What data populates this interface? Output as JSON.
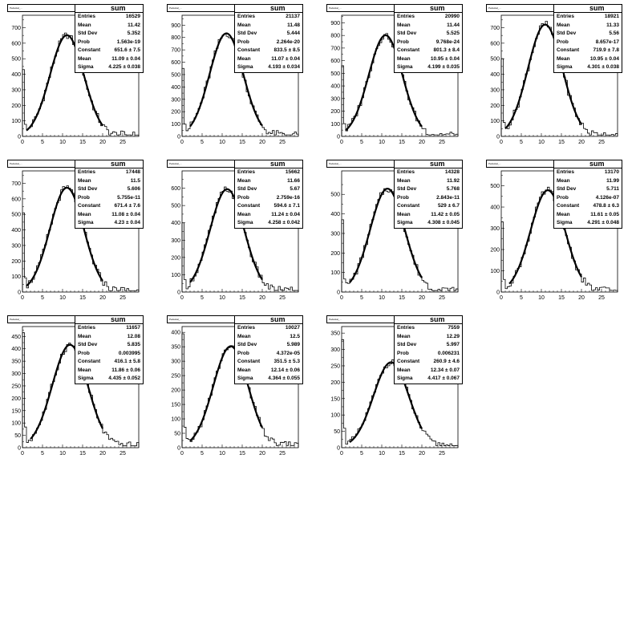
{
  "plots": [
    {
      "title": "Pedestal_...",
      "stats_name": "sum",
      "stats": [
        {
          "label": "Entries",
          "value": "16529"
        },
        {
          "label": "Mean",
          "value": "11.42"
        },
        {
          "label": "Std Dev",
          "value": "5.352"
        },
        {
          "label": "Prob",
          "value": "1.563e-19"
        },
        {
          "label": "Constant",
          "value": "651.6 ± 7.5"
        },
        {
          "label": "Mean",
          "value": "11.09 ± 0.04"
        },
        {
          "label": "Sigma",
          "value": "4.225 ± 0.038"
        }
      ],
      "chart_data": {
        "type": "histogram",
        "xlim": [
          0,
          29
        ],
        "ylim": [
          0,
          780
        ],
        "xticks": [
          0,
          5,
          10,
          15,
          20,
          25
        ],
        "yticks": [
          0,
          100,
          200,
          300,
          400,
          500,
          600,
          700
        ],
        "fit": {
          "constant": 651.6,
          "mean": 11.09,
          "sigma": 4.225,
          "range": [
            1,
            20
          ]
        },
        "spike_height": 430,
        "tail_level": 30
      }
    },
    {
      "title": "Pedestal_...",
      "stats_name": "sum",
      "stats": [
        {
          "label": "Entries",
          "value": "21137"
        },
        {
          "label": "Mean",
          "value": "11.48"
        },
        {
          "label": "Std Dev",
          "value": "5.444"
        },
        {
          "label": "Prob",
          "value": "2.264e-20"
        },
        {
          "label": "Constant",
          "value": "833.5 ± 8.5"
        },
        {
          "label": "Mean",
          "value": "11.07 ± 0.04"
        },
        {
          "label": "Sigma",
          "value": "4.193 ± 0.034"
        }
      ],
      "chart_data": {
        "type": "histogram",
        "xlim": [
          0,
          29
        ],
        "ylim": [
          0,
          980
        ],
        "xticks": [
          0,
          5,
          10,
          15,
          20,
          25
        ],
        "yticks": [
          0,
          100,
          200,
          300,
          400,
          500,
          600,
          700,
          800,
          900
        ],
        "fit": {
          "constant": 833.5,
          "mean": 11.07,
          "sigma": 4.193,
          "range": [
            2,
            20
          ]
        },
        "spike_height": 550,
        "tail_level": 40
      }
    },
    {
      "title": "Pedestal_...",
      "stats_name": "sum",
      "stats": [
        {
          "label": "Entries",
          "value": "20990"
        },
        {
          "label": "Mean",
          "value": "11.44"
        },
        {
          "label": "Std Dev",
          "value": "5.525"
        },
        {
          "label": "Prob",
          "value": "9.768e-24"
        },
        {
          "label": "Constant",
          "value": "801.3 ± 8.4"
        },
        {
          "label": "Mean",
          "value": "10.95 ± 0.04"
        },
        {
          "label": "Sigma",
          "value": "4.199 ± 0.035"
        }
      ],
      "chart_data": {
        "type": "histogram",
        "xlim": [
          0,
          29
        ],
        "ylim": [
          0,
          960
        ],
        "xticks": [
          0,
          5,
          10,
          15,
          20,
          25
        ],
        "yticks": [
          0,
          100,
          200,
          300,
          400,
          500,
          600,
          700,
          800,
          900
        ],
        "fit": {
          "constant": 801.3,
          "mean": 10.95,
          "sigma": 4.199,
          "range": [
            1,
            20
          ]
        },
        "spike_height": 560,
        "tail_level": 40
      }
    },
    {
      "title": "Pedestal_...",
      "stats_name": "sum",
      "stats": [
        {
          "label": "Entries",
          "value": "18921"
        },
        {
          "label": "Mean",
          "value": "11.33"
        },
        {
          "label": "Std Dev",
          "value": "5.56"
        },
        {
          "label": "Prob",
          "value": "8.657e-17"
        },
        {
          "label": "Constant",
          "value": "719.9 ± 7.8"
        },
        {
          "label": "Mean",
          "value": "10.95 ± 0.04"
        },
        {
          "label": "Sigma",
          "value": "4.301 ± 0.038"
        }
      ],
      "chart_data": {
        "type": "histogram",
        "xlim": [
          0,
          29
        ],
        "ylim": [
          0,
          780
        ],
        "xticks": [
          0,
          5,
          10,
          15,
          20,
          25
        ],
        "yticks": [
          0,
          100,
          200,
          300,
          400,
          500,
          600,
          700
        ],
        "fit": {
          "constant": 719.9,
          "mean": 10.95,
          "sigma": 4.301,
          "range": [
            1,
            20
          ]
        },
        "spike_height": 500,
        "tail_level": 30
      }
    },
    {
      "title": "Pedestal_...",
      "stats_name": "sum",
      "stats": [
        {
          "label": "Entries",
          "value": "17448"
        },
        {
          "label": "Mean",
          "value": "11.5"
        },
        {
          "label": "Std Dev",
          "value": "5.606"
        },
        {
          "label": "Prob",
          "value": "5.755e-11"
        },
        {
          "label": "Constant",
          "value": "671.4 ± 7.6"
        },
        {
          "label": "Mean",
          "value": "11.08 ± 0.04"
        },
        {
          "label": "Sigma",
          "value": "4.23 ± 0.04"
        }
      ],
      "chart_data": {
        "type": "histogram",
        "xlim": [
          0,
          29
        ],
        "ylim": [
          0,
          780
        ],
        "xticks": [
          0,
          5,
          10,
          15,
          20,
          25
        ],
        "yticks": [
          0,
          100,
          200,
          300,
          400,
          500,
          600,
          700
        ],
        "fit": {
          "constant": 671.4,
          "mean": 11.08,
          "sigma": 4.23,
          "range": [
            1,
            20
          ]
        },
        "spike_height": 510,
        "tail_level": 30
      }
    },
    {
      "title": "Pedestal_...",
      "stats_name": "sum",
      "stats": [
        {
          "label": "Entries",
          "value": "15662"
        },
        {
          "label": "Mean",
          "value": "11.66"
        },
        {
          "label": "Std Dev",
          "value": "5.67"
        },
        {
          "label": "Prob",
          "value": "2.759e-16"
        },
        {
          "label": "Constant",
          "value": "594.6 ± 7.1"
        },
        {
          "label": "Mean",
          "value": "11.24 ± 0.04"
        },
        {
          "label": "Sigma",
          "value": "4.258 ± 0.042"
        }
      ],
      "chart_data": {
        "type": "histogram",
        "xlim": [
          0,
          29
        ],
        "ylim": [
          0,
          700
        ],
        "xticks": [
          0,
          5,
          10,
          15,
          20,
          25
        ],
        "yticks": [
          0,
          100,
          200,
          300,
          400,
          500,
          600
        ],
        "fit": {
          "constant": 594.6,
          "mean": 11.24,
          "sigma": 4.258,
          "range": [
            2,
            20
          ]
        },
        "spike_height": 400,
        "tail_level": 30
      }
    },
    {
      "title": "Pedestal_...",
      "stats_name": "sum",
      "stats": [
        {
          "label": "Entries",
          "value": "14328"
        },
        {
          "label": "Mean",
          "value": "11.92"
        },
        {
          "label": "Std Dev",
          "value": "5.768"
        },
        {
          "label": "Prob",
          "value": "2.843e-11"
        },
        {
          "label": "Constant",
          "value": "529 ± 6.7"
        },
        {
          "label": "Mean",
          "value": "11.42 ± 0.05"
        },
        {
          "label": "Sigma",
          "value": "4.308 ± 0.045"
        }
      ],
      "chart_data": {
        "type": "histogram",
        "xlim": [
          0,
          29
        ],
        "ylim": [
          0,
          620
        ],
        "xticks": [
          0,
          5,
          10,
          15,
          20,
          25
        ],
        "yticks": [
          0,
          100,
          200,
          300,
          400,
          500
        ],
        "fit": {
          "constant": 529,
          "mean": 11.42,
          "sigma": 4.308,
          "range": [
            2,
            20
          ]
        },
        "spike_height": 370,
        "tail_level": 25
      }
    },
    {
      "title": "Pedestal_...",
      "stats_name": "sum",
      "stats": [
        {
          "label": "Entries",
          "value": "13170"
        },
        {
          "label": "Mean",
          "value": "11.99"
        },
        {
          "label": "Std Dev",
          "value": "5.711"
        },
        {
          "label": "Prob",
          "value": "4.126e-07"
        },
        {
          "label": "Constant",
          "value": "478.8 ± 6.3"
        },
        {
          "label": "Mean",
          "value": "11.61 ± 0.05"
        },
        {
          "label": "Sigma",
          "value": "4.291 ± 0.048"
        }
      ],
      "chart_data": {
        "type": "histogram",
        "xlim": [
          0,
          29
        ],
        "ylim": [
          0,
          570
        ],
        "xticks": [
          0,
          5,
          10,
          15,
          20,
          25
        ],
        "yticks": [
          0,
          100,
          200,
          300,
          400,
          500
        ],
        "fit": {
          "constant": 478.8,
          "mean": 11.61,
          "sigma": 4.291,
          "range": [
            2,
            20
          ]
        },
        "spike_height": 330,
        "tail_level": 25
      }
    },
    {
      "title": "Pedestal_...",
      "stats_name": "sum",
      "stats": [
        {
          "label": "Entries",
          "value": "11657"
        },
        {
          "label": "Mean",
          "value": "12.08"
        },
        {
          "label": "Std Dev",
          "value": "5.835"
        },
        {
          "label": "Prob",
          "value": "0.003995"
        },
        {
          "label": "Constant",
          "value": "416.1 ± 5.8"
        },
        {
          "label": "Mean",
          "value": "11.86 ± 0.06"
        },
        {
          "label": "Sigma",
          "value": "4.435 ± 0.052"
        }
      ],
      "chart_data": {
        "type": "histogram",
        "xlim": [
          0,
          29
        ],
        "ylim": [
          0,
          490
        ],
        "xticks": [
          0,
          5,
          10,
          15,
          20,
          25
        ],
        "yticks": [
          0,
          50,
          100,
          150,
          200,
          250,
          300,
          350,
          400,
          450
        ],
        "fit": {
          "constant": 416.1,
          "mean": 11.86,
          "sigma": 4.435,
          "range": [
            2,
            20
          ]
        },
        "spike_height": 465,
        "tail_level": 25
      }
    },
    {
      "title": "Pedestal_...",
      "stats_name": "sum",
      "stats": [
        {
          "label": "Entries",
          "value": "10027"
        },
        {
          "label": "Mean",
          "value": "12.5"
        },
        {
          "label": "Std Dev",
          "value": "5.989"
        },
        {
          "label": "Prob",
          "value": "4.372e-05"
        },
        {
          "label": "Constant",
          "value": "351.5 ± 5.3"
        },
        {
          "label": "Mean",
          "value": "12.14 ± 0.06"
        },
        {
          "label": "Sigma",
          "value": "4.364 ± 0.055"
        }
      ],
      "chart_data": {
        "type": "histogram",
        "xlim": [
          0,
          29
        ],
        "ylim": [
          0,
          420
        ],
        "xticks": [
          0,
          5,
          10,
          15,
          20,
          25
        ],
        "yticks": [
          0,
          50,
          100,
          150,
          200,
          250,
          300,
          350,
          400
        ],
        "fit": {
          "constant": 351.5,
          "mean": 12.14,
          "sigma": 4.364,
          "range": [
            2,
            20
          ]
        },
        "spike_height": 395,
        "tail_level": 25
      }
    },
    {
      "title": "Pedestal_...",
      "stats_name": "sum",
      "stats": [
        {
          "label": "Entries",
          "value": "7559"
        },
        {
          "label": "Mean",
          "value": "12.29"
        },
        {
          "label": "Std Dev",
          "value": "5.997"
        },
        {
          "label": "Prob",
          "value": "0.006231"
        },
        {
          "label": "Constant",
          "value": "260.9 ± 4.6"
        },
        {
          "label": "Mean",
          "value": "12.34 ± 0.07"
        },
        {
          "label": "Sigma",
          "value": "4.417 ± 0.067"
        }
      ],
      "chart_data": {
        "type": "histogram",
        "xlim": [
          0,
          29
        ],
        "ylim": [
          0,
          370
        ],
        "xticks": [
          0,
          5,
          10,
          15,
          20,
          25
        ],
        "yticks": [
          0,
          50,
          100,
          150,
          200,
          250,
          300,
          350
        ],
        "fit": {
          "constant": 260.9,
          "mean": 12.34,
          "sigma": 4.417,
          "range": [
            2,
            20
          ]
        },
        "spike_height": 330,
        "tail_level": 20
      }
    }
  ]
}
